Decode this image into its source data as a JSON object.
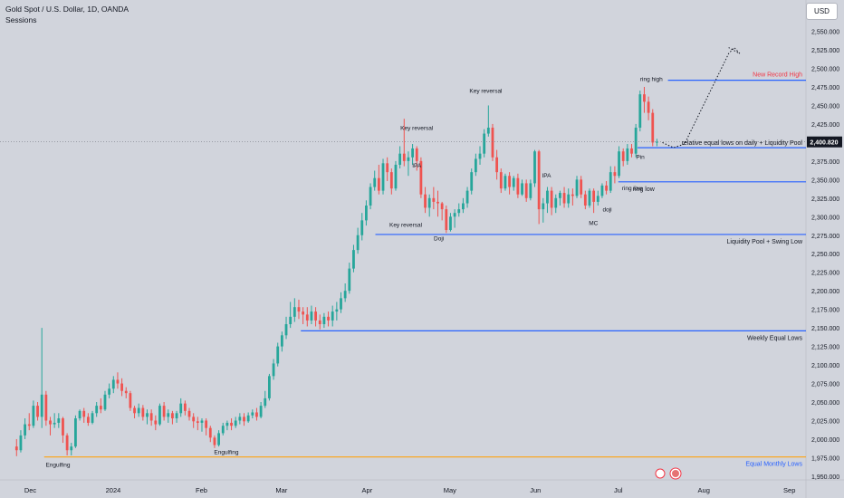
{
  "header": {
    "symbol_title": "Gold Spot / U.S. Dollar, 1D, OANDA",
    "indicator": "Sessions",
    "currency_button": "USD"
  },
  "chart_data": {
    "type": "candlestick",
    "price_axis_ticks": [
      "2,550.000",
      "2,525.000",
      "2,500.000",
      "2,475.000",
      "2,450.000",
      "2,425.000",
      "2,400.000",
      "2,375.000",
      "2,350.000",
      "2,325.000",
      "2,300.000",
      "2,275.000",
      "2,250.000",
      "2,225.000",
      "2,200.000",
      "2,175.000",
      "2,150.000",
      "2,125.000",
      "2,100.000",
      "2,075.000",
      "2,050.000",
      "2,025.000",
      "2,000.000",
      "1,975.000",
      "1,950.000"
    ],
    "time_axis_ticks": [
      {
        "label": "Dec",
        "day": 5
      },
      {
        "label": "2024",
        "day": 35
      },
      {
        "label": "Feb",
        "day": 67
      },
      {
        "label": "Mar",
        "day": 96
      },
      {
        "label": "Apr",
        "day": 127
      },
      {
        "label": "May",
        "day": 157
      },
      {
        "label": "Jun",
        "day": 188
      },
      {
        "label": "Jul",
        "day": 218
      },
      {
        "label": "Aug",
        "day": 249
      },
      {
        "label": "Sep",
        "day": 280
      }
    ],
    "ylim": [
      1945,
      2558
    ],
    "x_range_days": [
      -6,
      286
    ],
    "current_price": "2,400.820",
    "current_price_value": 2400.8,
    "colors": {
      "up": "#26a69a",
      "down": "#ef5350",
      "level": "#2962ff",
      "monthly": "#f9a825",
      "record": "#f23645",
      "projection": "#131722"
    },
    "candles": [
      [
        1990,
        1985,
        2000,
        1977
      ],
      [
        1985,
        2005,
        2012,
        1982
      ],
      [
        2005,
        2020,
        2028,
        2000
      ],
      [
        2020,
        2018,
        2035,
        2012
      ],
      [
        2018,
        2045,
        2052,
        2015
      ],
      [
        2045,
        2030,
        2050,
        2025
      ],
      [
        2030,
        2060,
        2150,
        2015
      ],
      [
        2060,
        2025,
        2065,
        2018
      ],
      [
        2025,
        2020,
        2030,
        2005
      ],
      [
        2020,
        2022,
        2035,
        2015
      ],
      [
        2022,
        2028,
        2035,
        2015
      ],
      [
        2028,
        2005,
        2030,
        1995
      ],
      [
        2005,
        1985,
        2008,
        1978
      ],
      [
        1985,
        1990,
        1995,
        1978
      ],
      [
        1990,
        2028,
        2032,
        1988
      ],
      [
        2028,
        2038,
        2040,
        2025
      ],
      [
        2038,
        2030,
        2042,
        2022
      ],
      [
        2030,
        2022,
        2035,
        2018
      ],
      [
        2022,
        2035,
        2038,
        2020
      ],
      [
        2035,
        2045,
        2050,
        2030
      ],
      [
        2045,
        2040,
        2055,
        2035
      ],
      [
        2040,
        2060,
        2065,
        2038
      ],
      [
        2060,
        2068,
        2075,
        2055
      ],
      [
        2068,
        2080,
        2085,
        2062
      ],
      [
        2080,
        2075,
        2090,
        2068
      ],
      [
        2075,
        2065,
        2082,
        2058
      ],
      [
        2065,
        2062,
        2070,
        2055
      ],
      [
        2062,
        2042,
        2065,
        2038
      ],
      [
        2042,
        2035,
        2045,
        2028
      ],
      [
        2035,
        2042,
        2048,
        2030
      ],
      [
        2042,
        2030,
        2046,
        2025
      ],
      [
        2030,
        2035,
        2040,
        2020
      ],
      [
        2035,
        2025,
        2040,
        2018
      ],
      [
        2025,
        2020,
        2032,
        2012
      ],
      [
        2020,
        2045,
        2048,
        2018
      ],
      [
        2045,
        2030,
        2050,
        2025
      ],
      [
        2030,
        2035,
        2040,
        2022
      ],
      [
        2035,
        2028,
        2038,
        2020
      ],
      [
        2028,
        2035,
        2038,
        2022
      ],
      [
        2035,
        2048,
        2055,
        2030
      ],
      [
        2048,
        2038,
        2052,
        2032
      ],
      [
        2038,
        2030,
        2042,
        2025
      ],
      [
        2030,
        2024,
        2035,
        2015
      ],
      [
        2024,
        2022,
        2030,
        2012
      ],
      [
        2022,
        2025,
        2028,
        2010
      ],
      [
        2025,
        2015,
        2028,
        2005
      ],
      [
        2015,
        2002,
        2018,
        1996
      ],
      [
        2002,
        1992,
        2005,
        1988
      ],
      [
        1992,
        2008,
        2012,
        1990
      ],
      [
        2008,
        2018,
        2022,
        2005
      ],
      [
        2018,
        2022,
        2025,
        2012
      ],
      [
        2022,
        2018,
        2028,
        2012
      ],
      [
        2018,
        2025,
        2030,
        2015
      ],
      [
        2025,
        2030,
        2035,
        2020
      ],
      [
        2030,
        2024,
        2035,
        2018
      ],
      [
        2024,
        2032,
        2036,
        2022
      ],
      [
        2032,
        2036,
        2040,
        2028
      ],
      [
        2036,
        2030,
        2042,
        2025
      ],
      [
        2030,
        2045,
        2050,
        2028
      ],
      [
        2045,
        2055,
        2065,
        2042
      ],
      [
        2055,
        2085,
        2088,
        2052
      ],
      [
        2085,
        2102,
        2108,
        2080
      ],
      [
        2102,
        2125,
        2130,
        2098
      ],
      [
        2125,
        2140,
        2145,
        2118
      ],
      [
        2140,
        2155,
        2165,
        2135
      ],
      [
        2155,
        2165,
        2185,
        2150
      ],
      [
        2165,
        2178,
        2190,
        2158
      ],
      [
        2178,
        2172,
        2188,
        2162
      ],
      [
        2172,
        2168,
        2178,
        2155
      ],
      [
        2168,
        2160,
        2178,
        2152
      ],
      [
        2160,
        2172,
        2180,
        2155
      ],
      [
        2172,
        2160,
        2178,
        2152
      ],
      [
        2160,
        2155,
        2168,
        2148
      ],
      [
        2155,
        2165,
        2170,
        2150
      ],
      [
        2165,
        2160,
        2172,
        2152
      ],
      [
        2160,
        2172,
        2180,
        2152
      ],
      [
        2172,
        2175,
        2185,
        2160
      ],
      [
        2175,
        2190,
        2198,
        2170
      ],
      [
        2190,
        2200,
        2210,
        2185
      ],
      [
        2200,
        2230,
        2238,
        2196
      ],
      [
        2230,
        2255,
        2262,
        2225
      ],
      [
        2255,
        2275,
        2285,
        2250
      ],
      [
        2275,
        2295,
        2305,
        2268
      ],
      [
        2295,
        2315,
        2322,
        2288
      ],
      [
        2315,
        2340,
        2345,
        2310
      ],
      [
        2340,
        2352,
        2362,
        2335
      ],
      [
        2352,
        2335,
        2370,
        2330
      ],
      [
        2335,
        2372,
        2378,
        2330
      ],
      [
        2372,
        2360,
        2380,
        2348
      ],
      [
        2360,
        2338,
        2365,
        2330
      ],
      [
        2338,
        2370,
        2375,
        2335
      ],
      [
        2370,
        2385,
        2395,
        2365
      ],
      [
        2385,
        2375,
        2432,
        2368
      ],
      [
        2375,
        2380,
        2388,
        2355
      ],
      [
        2380,
        2392,
        2398,
        2370
      ],
      [
        2392,
        2375,
        2395,
        2362
      ],
      [
        2375,
        2330,
        2380,
        2325
      ],
      [
        2330,
        2312,
        2340,
        2305
      ],
      [
        2312,
        2325,
        2330,
        2300
      ],
      [
        2325,
        2320,
        2340,
        2310
      ],
      [
        2320,
        2318,
        2335,
        2300
      ],
      [
        2318,
        2310,
        2320,
        2295
      ],
      [
        2310,
        2282,
        2315,
        2278
      ],
      [
        2282,
        2300,
        2305,
        2280
      ],
      [
        2300,
        2305,
        2310,
        2285
      ],
      [
        2305,
        2310,
        2318,
        2300
      ],
      [
        2310,
        2318,
        2325,
        2305
      ],
      [
        2318,
        2335,
        2340,
        2312
      ],
      [
        2335,
        2360,
        2365,
        2330
      ],
      [
        2360,
        2378,
        2385,
        2355
      ],
      [
        2378,
        2385,
        2395,
        2370
      ],
      [
        2385,
        2412,
        2418,
        2380
      ],
      [
        2412,
        2420,
        2450,
        2408
      ],
      [
        2420,
        2380,
        2425,
        2375
      ],
      [
        2380,
        2360,
        2390,
        2350
      ],
      [
        2360,
        2338,
        2365,
        2332
      ],
      [
        2338,
        2355,
        2358,
        2335
      ],
      [
        2355,
        2340,
        2360,
        2330
      ],
      [
        2340,
        2352,
        2355,
        2335
      ],
      [
        2352,
        2330,
        2358,
        2325
      ],
      [
        2330,
        2345,
        2350,
        2328
      ],
      [
        2345,
        2325,
        2350,
        2320
      ],
      [
        2325,
        2345,
        2350,
        2322
      ],
      [
        2345,
        2388,
        2390,
        2340
      ],
      [
        2388,
        2310,
        2390,
        2290
      ],
      [
        2310,
        2318,
        2325,
        2292
      ],
      [
        2318,
        2335,
        2340,
        2305
      ],
      [
        2335,
        2312,
        2340,
        2302
      ],
      [
        2312,
        2325,
        2330,
        2305
      ],
      [
        2325,
        2332,
        2335,
        2315
      ],
      [
        2332,
        2318,
        2340,
        2312
      ],
      [
        2318,
        2330,
        2338,
        2312
      ],
      [
        2330,
        2328,
        2338,
        2315
      ],
      [
        2328,
        2350,
        2355,
        2325
      ],
      [
        2350,
        2330,
        2355,
        2325
      ],
      [
        2330,
        2315,
        2335,
        2310
      ],
      [
        2315,
        2335,
        2338,
        2312
      ],
      [
        2335,
        2320,
        2338,
        2305
      ],
      [
        2320,
        2328,
        2335,
        2315
      ],
      [
        2328,
        2342,
        2345,
        2325
      ],
      [
        2342,
        2335,
        2348,
        2330
      ],
      [
        2335,
        2360,
        2368,
        2332
      ],
      [
        2360,
        2355,
        2368,
        2345
      ],
      [
        2355,
        2388,
        2395,
        2352
      ],
      [
        2388,
        2375,
        2392,
        2368
      ],
      [
        2375,
        2392,
        2398,
        2370
      ],
      [
        2392,
        2385,
        2398,
        2380
      ],
      [
        2385,
        2420,
        2425,
        2380
      ],
      [
        2420,
        2465,
        2470,
        2415
      ],
      [
        2465,
        2455,
        2475,
        2440
      ],
      [
        2455,
        2440,
        2462,
        2430
      ],
      [
        2440,
        2400,
        2445,
        2395
      ],
      [
        2400,
        2401,
        2405,
        2395
      ]
    ],
    "level_lines": [
      {
        "label": "New Record High",
        "price": 2484,
        "start_day": 236
      },
      {
        "label": "relative equal lows on daily + Liquidity Pool",
        "price": 2393,
        "start_day": 225
      },
      {
        "label": "ring low",
        "price": 2347,
        "start_day": 218
      },
      {
        "label": "Liquidity Pool + Swing Low",
        "price": 2276,
        "start_day": 130
      },
      {
        "label": "Weekly Equal Lows",
        "price": 2146,
        "start_day": 103
      },
      {
        "label": "Equal Monthly Lows",
        "price": 1976,
        "start_day": 10
      }
    ],
    "annotations": [
      {
        "text": "Engulfing",
        "day": 15,
        "price": 1963
      },
      {
        "text": "Engulfing",
        "day": 76,
        "price": 1980
      },
      {
        "text": "Key reversal",
        "day": 145,
        "price": 2417
      },
      {
        "text": "IPA",
        "day": 145,
        "price": 2366
      },
      {
        "text": "Key reversal",
        "day": 141,
        "price": 2286
      },
      {
        "text": "Doji",
        "day": 153,
        "price": 2268
      },
      {
        "text": "Key reversal",
        "day": 170,
        "price": 2467
      },
      {
        "text": "IPA",
        "day": 192,
        "price": 2353
      },
      {
        "text": "MC",
        "day": 209,
        "price": 2289
      },
      {
        "text": "doji",
        "day": 214,
        "price": 2307
      },
      {
        "text": "ring low",
        "day": 223,
        "price": 2336
      },
      {
        "text": "Pin",
        "day": 226,
        "price": 2378
      },
      {
        "text": "ring high",
        "day": 230,
        "price": 2483
      }
    ],
    "projection_path": [
      [
        234,
        2400
      ],
      [
        238,
        2393
      ],
      [
        242,
        2398
      ],
      [
        258,
        2520
      ],
      [
        260,
        2528
      ],
      [
        262,
        2520
      ],
      [
        258,
        2528
      ]
    ],
    "dashed_price_line": 2400.8,
    "grid": false,
    "legend": "none"
  }
}
